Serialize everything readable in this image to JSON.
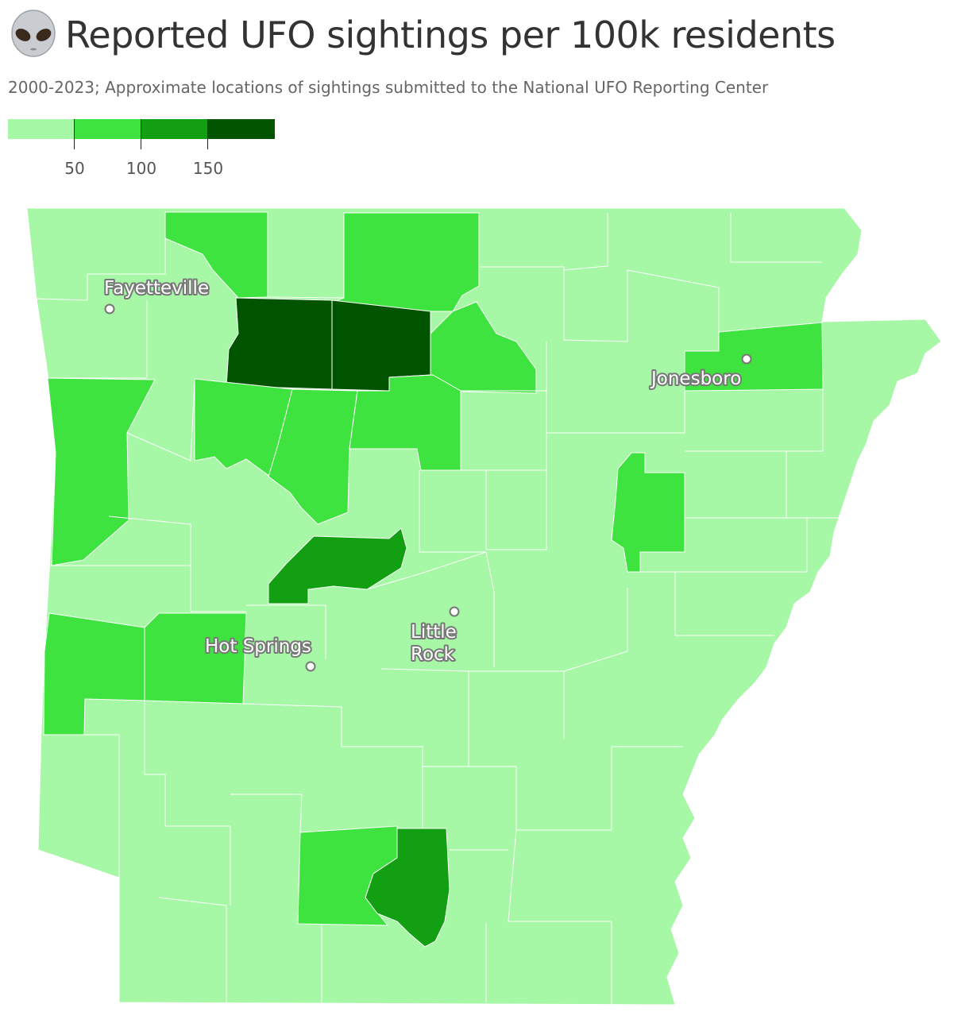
{
  "header": {
    "icon": "alien-icon",
    "title": "Reported UFO sightings per 100k residents",
    "subtitle": "2000-2023; Approximate locations of sightings submitted to the National UFO Reporting Center"
  },
  "legend": {
    "colors": [
      "#a6f7a6",
      "#3fe33f",
      "#12a012",
      "#005400"
    ],
    "ticks": [
      "50",
      "100",
      "150"
    ]
  },
  "colors": {
    "low": "#a6f7a6",
    "mid": "#3fe33f",
    "high": "#12a012",
    "top": "#005400"
  },
  "cities": [
    {
      "name": "Fayetteville"
    },
    {
      "name": "Jonesboro"
    },
    {
      "name": "Hot Springs"
    },
    {
      "name": "Little",
      "name2": "Rock"
    }
  ]
}
